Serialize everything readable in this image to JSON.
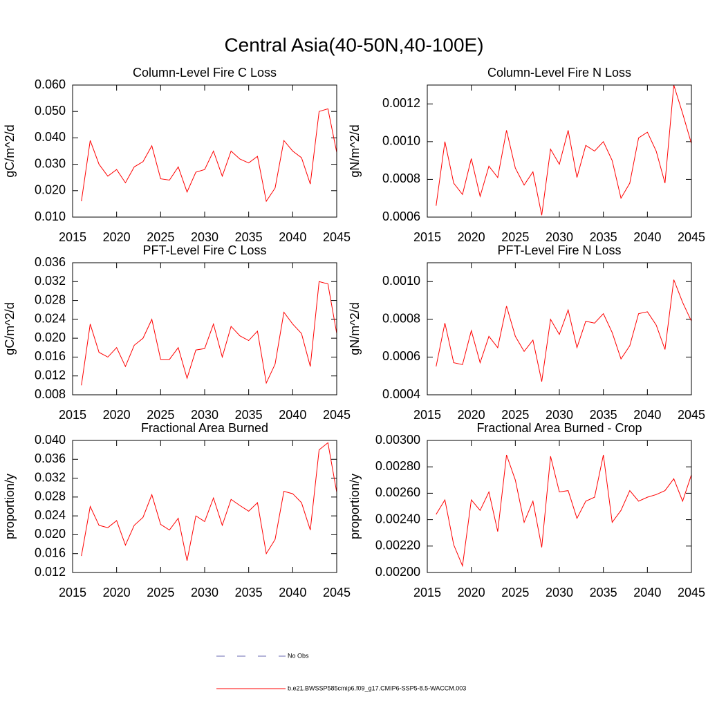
{
  "title": "Central Asia(40-50N,40-100E)",
  "legend": [
    {
      "name": "No Obs",
      "color": "#6a6ab0",
      "dashed": true
    },
    {
      "name": "b.e21.BWSSP585cmip6.f09_g17.CMIP6-SSP5-8.5-WACCM.003",
      "color": "#ff0000",
      "dashed": false
    }
  ],
  "chart_data": [
    {
      "type": "line",
      "title": "Column-Level Fire C Loss",
      "y_label": "gC/m^2/d",
      "x": [
        2016,
        2017,
        2018,
        2019,
        2020,
        2021,
        2022,
        2023,
        2024,
        2025,
        2026,
        2027,
        2028,
        2029,
        2030,
        2031,
        2032,
        2033,
        2034,
        2035,
        2036,
        2037,
        2038,
        2039,
        2040,
        2041,
        2042,
        2043,
        2044,
        2045
      ],
      "series": [
        {
          "color": "#ff0000",
          "values": [
            0.016,
            0.039,
            0.03,
            0.0255,
            0.028,
            0.023,
            0.029,
            0.031,
            0.037,
            0.0245,
            0.024,
            0.029,
            0.0195,
            0.027,
            0.028,
            0.035,
            0.0255,
            0.035,
            0.032,
            0.0305,
            0.033,
            0.016,
            0.021,
            0.039,
            0.035,
            0.0325,
            0.0225,
            0.05,
            0.051,
            0.0345
          ]
        }
      ],
      "xlim": [
        2015,
        2045
      ],
      "xticks": [
        2015,
        2020,
        2025,
        2030,
        2035,
        2040,
        2045
      ],
      "ylim": [
        0.01,
        0.06
      ],
      "yticks": [
        {
          "value": 0.01,
          "label": "0.010"
        },
        {
          "value": 0.02,
          "label": "0.020"
        },
        {
          "value": 0.03,
          "label": "0.030"
        },
        {
          "value": 0.04,
          "label": "0.040"
        },
        {
          "value": 0.05,
          "label": "0.050"
        },
        {
          "value": 0.06,
          "label": "0.060"
        }
      ]
    },
    {
      "type": "line",
      "title": "Column-Level Fire N Loss",
      "y_label": "gN/m^2/d",
      "x": [
        2016,
        2017,
        2018,
        2019,
        2020,
        2021,
        2022,
        2023,
        2024,
        2025,
        2026,
        2027,
        2028,
        2029,
        2030,
        2031,
        2032,
        2033,
        2034,
        2035,
        2036,
        2037,
        2038,
        2039,
        2040,
        2041,
        2042,
        2043,
        2044,
        2045
      ],
      "series": [
        {
          "color": "#ff0000",
          "values": [
            0.00066,
            0.001,
            0.00078,
            0.00072,
            0.00091,
            0.00071,
            0.00087,
            0.00081,
            0.00106,
            0.00086,
            0.00077,
            0.00084,
            0.00061,
            0.00096,
            0.00088,
            0.00106,
            0.00081,
            0.00098,
            0.00095,
            0.001,
            0.0009,
            0.0007,
            0.00078,
            0.00102,
            0.00105,
            0.00095,
            0.00078,
            0.0013,
            0.00115,
            0.00099
          ]
        }
      ],
      "xlim": [
        2015,
        2045
      ],
      "xticks": [
        2015,
        2020,
        2025,
        2030,
        2035,
        2040,
        2045
      ],
      "ylim": [
        0.0006,
        0.0013
      ],
      "yticks": [
        0.0006,
        0.0008,
        {
          "value": 0.001,
          "label": "0.0010"
        },
        0.0012
      ]
    },
    {
      "type": "line",
      "title": "PFT-Level Fire C Loss",
      "y_label": "gC/m^2/d",
      "x": [
        2016,
        2017,
        2018,
        2019,
        2020,
        2021,
        2022,
        2023,
        2024,
        2025,
        2026,
        2027,
        2028,
        2029,
        2030,
        2031,
        2032,
        2033,
        2034,
        2035,
        2036,
        2037,
        2038,
        2039,
        2040,
        2041,
        2042,
        2043,
        2044,
        2045
      ],
      "series": [
        {
          "color": "#ff0000",
          "values": [
            0.01,
            0.023,
            0.017,
            0.016,
            0.018,
            0.014,
            0.0185,
            0.02,
            0.024,
            0.0155,
            0.0155,
            0.018,
            0.0115,
            0.0175,
            0.0178,
            0.023,
            0.016,
            0.0225,
            0.0205,
            0.0195,
            0.0215,
            0.0105,
            0.0145,
            0.0255,
            0.023,
            0.021,
            0.014,
            0.032,
            0.0315,
            0.021
          ]
        }
      ],
      "xlim": [
        2015,
        2045
      ],
      "xticks": [
        2015,
        2020,
        2025,
        2030,
        2035,
        2040,
        2045
      ],
      "ylim": [
        0.008,
        0.036
      ],
      "yticks": [
        0.008,
        0.012,
        0.016,
        {
          "value": 0.02,
          "label": "0.020"
        },
        0.024,
        0.028,
        0.032,
        0.036
      ]
    },
    {
      "type": "line",
      "title": "PFT-Level Fire N Loss",
      "y_label": "gN/m^2/d",
      "x": [
        2016,
        2017,
        2018,
        2019,
        2020,
        2021,
        2022,
        2023,
        2024,
        2025,
        2026,
        2027,
        2028,
        2029,
        2030,
        2031,
        2032,
        2033,
        2034,
        2035,
        2036,
        2037,
        2038,
        2039,
        2040,
        2041,
        2042,
        2043,
        2044,
        2045
      ],
      "series": [
        {
          "color": "#ff0000",
          "values": [
            0.00055,
            0.00078,
            0.00057,
            0.00056,
            0.00074,
            0.00057,
            0.00071,
            0.00065,
            0.00087,
            0.00071,
            0.00063,
            0.00069,
            0.00047,
            0.0008,
            0.00072,
            0.00085,
            0.00065,
            0.00079,
            0.00078,
            0.00083,
            0.00073,
            0.00059,
            0.00066,
            0.00083,
            0.00084,
            0.00077,
            0.00064,
            0.00101,
            0.00089,
            0.00079
          ]
        }
      ],
      "xlim": [
        2015,
        2045
      ],
      "xticks": [
        2015,
        2020,
        2025,
        2030,
        2035,
        2040,
        2045
      ],
      "ylim": [
        0.0004,
        0.0011
      ],
      "yticks": [
        0.0004,
        0.0006,
        0.0008,
        {
          "value": 0.001,
          "label": "0.0010"
        }
      ]
    },
    {
      "type": "line",
      "title": "Fractional Area Burned",
      "y_label": "proportion/y",
      "x": [
        2016,
        2017,
        2018,
        2019,
        2020,
        2021,
        2022,
        2023,
        2024,
        2025,
        2026,
        2027,
        2028,
        2029,
        2030,
        2031,
        2032,
        2033,
        2034,
        2035,
        2036,
        2037,
        2038,
        2039,
        2040,
        2041,
        2042,
        2043,
        2044,
        2045
      ],
      "series": [
        {
          "color": "#ff0000",
          "values": [
            0.0155,
            0.026,
            0.022,
            0.0215,
            0.023,
            0.0178,
            0.022,
            0.0237,
            0.0285,
            0.0222,
            0.021,
            0.0235,
            0.0145,
            0.024,
            0.0228,
            0.0278,
            0.022,
            0.0275,
            0.0262,
            0.025,
            0.0268,
            0.016,
            0.019,
            0.0292,
            0.0287,
            0.0268,
            0.021,
            0.038,
            0.0395,
            0.029
          ]
        }
      ],
      "xlim": [
        2015,
        2045
      ],
      "xticks": [
        2015,
        2020,
        2025,
        2030,
        2035,
        2040,
        2045
      ],
      "ylim": [
        0.012,
        0.04
      ],
      "yticks": [
        0.012,
        0.016,
        {
          "value": 0.02,
          "label": "0.020"
        },
        0.024,
        0.028,
        0.032,
        0.036,
        {
          "value": 0.04,
          "label": "0.040"
        }
      ]
    },
    {
      "type": "line",
      "title": "Fractional Area Burned - Crop",
      "y_label": "proportion/y",
      "x": [
        2016,
        2017,
        2018,
        2019,
        2020,
        2021,
        2022,
        2023,
        2024,
        2025,
        2026,
        2027,
        2028,
        2029,
        2030,
        2031,
        2032,
        2033,
        2034,
        2035,
        2036,
        2037,
        2038,
        2039,
        2040,
        2041,
        2042,
        2043,
        2044,
        2045
      ],
      "series": [
        {
          "color": "#ff0000",
          "values": [
            0.00244,
            0.00255,
            0.00221,
            0.00205,
            0.00255,
            0.00247,
            0.00261,
            0.00231,
            0.00289,
            0.0027,
            0.00238,
            0.00254,
            0.00219,
            0.00288,
            0.00261,
            0.00262,
            0.00241,
            0.00254,
            0.00257,
            0.00289,
            0.00238,
            0.00247,
            0.00262,
            0.00254,
            0.00257,
            0.00259,
            0.00262,
            0.00271,
            0.00254,
            0.00274
          ]
        }
      ],
      "xlim": [
        2015,
        2045
      ],
      "xticks": [
        2015,
        2020,
        2025,
        2030,
        2035,
        2040,
        2045
      ],
      "ylim": [
        0.002,
        0.003
      ],
      "yticks": [
        {
          "value": 0.002,
          "label": "0.00200"
        },
        {
          "value": 0.0022,
          "label": "0.00220"
        },
        {
          "value": 0.0024,
          "label": "0.00240"
        },
        {
          "value": 0.0026,
          "label": "0.00260"
        },
        {
          "value": 0.0028,
          "label": "0.00280"
        },
        {
          "value": 0.003,
          "label": "0.00300"
        }
      ]
    }
  ]
}
